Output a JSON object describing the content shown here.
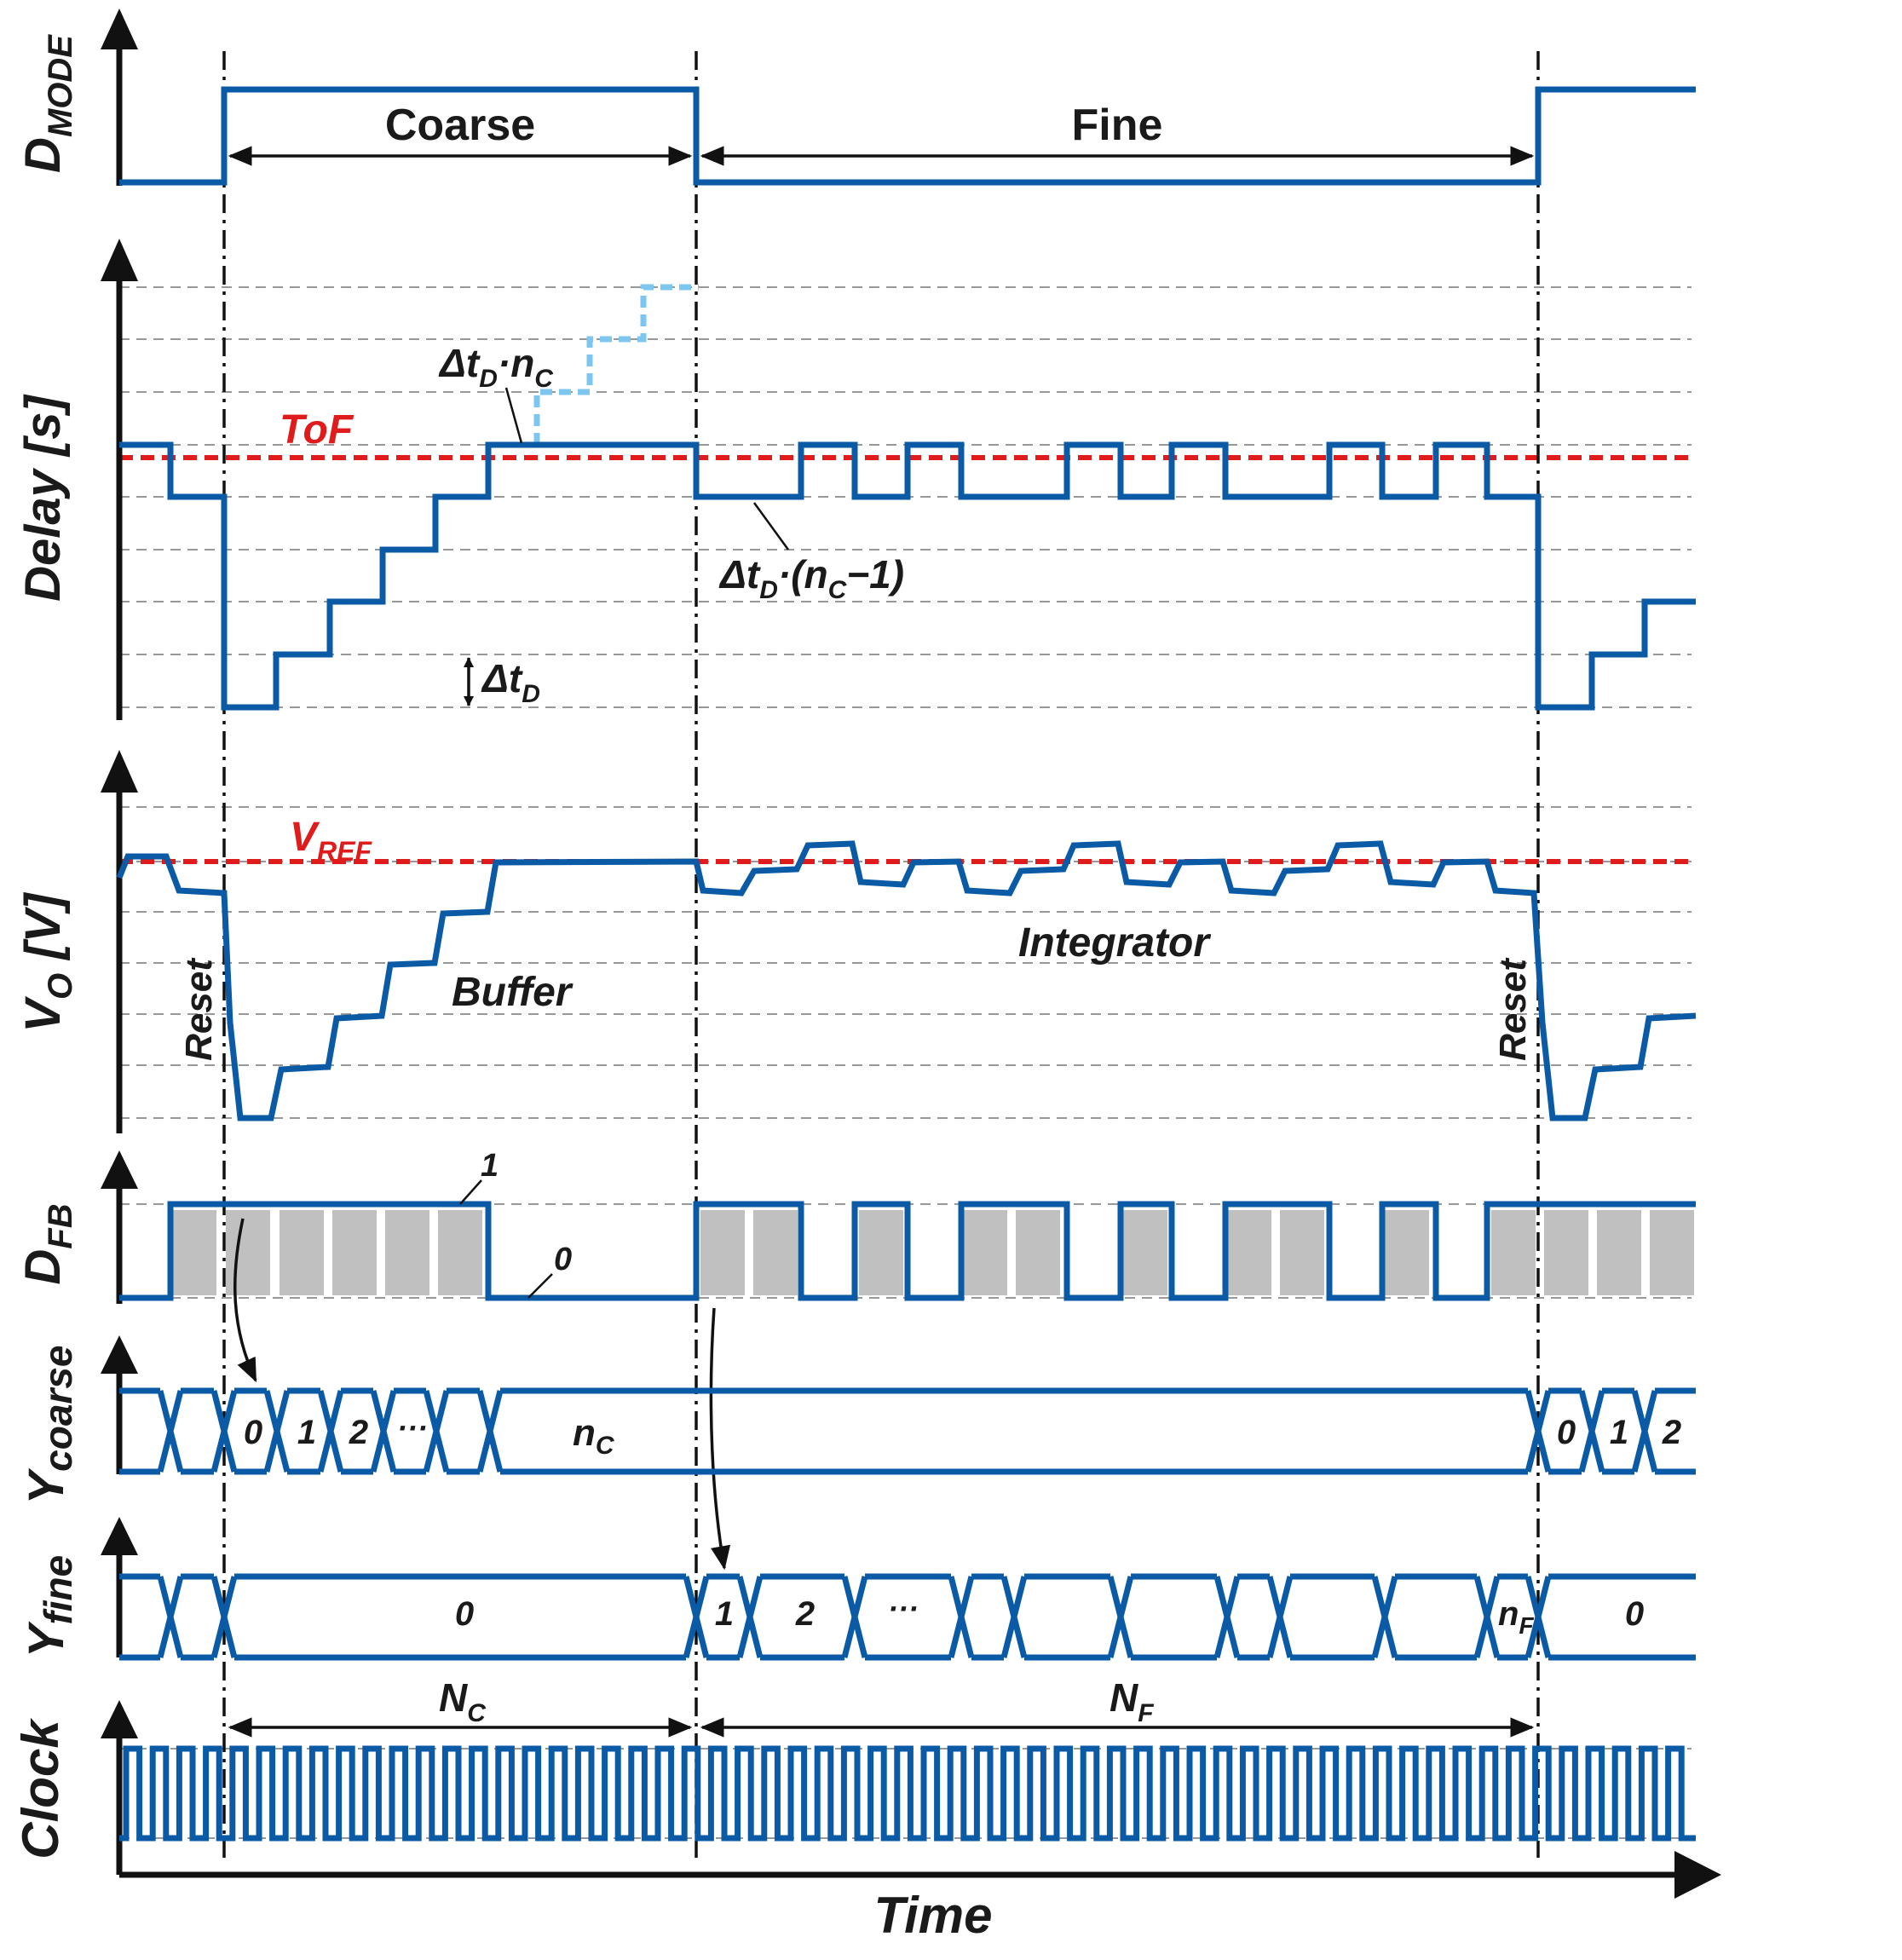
{
  "axes": {
    "dmode": "D",
    "dmode_sub": "MODE",
    "delay": "Delay [s]",
    "vo": "V",
    "vo_sub": "O",
    "vo_unit": " [V]",
    "dfb": "D",
    "dfb_sub": "FB",
    "ycoarse": "Y",
    "ycoarse_sub": "coarse",
    "yfine": "Y",
    "yfine_sub": "fine",
    "clock": "Clock",
    "time": "Time"
  },
  "phases": {
    "coarse": "Coarse",
    "fine": "Fine"
  },
  "delay_labels": {
    "tof": "ToF",
    "delta_nc_a": "Δt",
    "delta_nc_b": "D",
    "delta_nc_c": "·n",
    "delta_nc_d": "C",
    "delta_nc1_a": "Δt",
    "delta_nc1_b": "D",
    "delta_nc1_c": "·(n",
    "delta_nc1_d": "C",
    "delta_nc1_e": "−1)",
    "step_a": "Δt",
    "step_b": "D"
  },
  "vo_labels": {
    "vref": "V",
    "vref_sub": "REF",
    "reset": "Reset",
    "buffer": "Buffer",
    "integrator": "Integrator"
  },
  "dfb_labels": {
    "one": "1",
    "zero": "0"
  },
  "ycoarse_values": [
    "0",
    "1",
    "2",
    "···"
  ],
  "ycoarse_nc": "n",
  "ycoarse_nc_sub": "C",
  "ycoarse_tail": [
    "0",
    "1",
    "2"
  ],
  "yfine_values": [
    "0",
    "1",
    "2",
    "···"
  ],
  "yfine_nf": "n",
  "yfine_nf_sub": "F",
  "yfine_tail": "0",
  "counts": {
    "nc": "N",
    "nc_sub": "C",
    "nf": "N",
    "nf_sub": "F"
  },
  "colors": {
    "signal": "#0b5aa6",
    "reference": "#e01b1b",
    "shade": "#c0c0c0",
    "projection": "#7cc6ef"
  }
}
